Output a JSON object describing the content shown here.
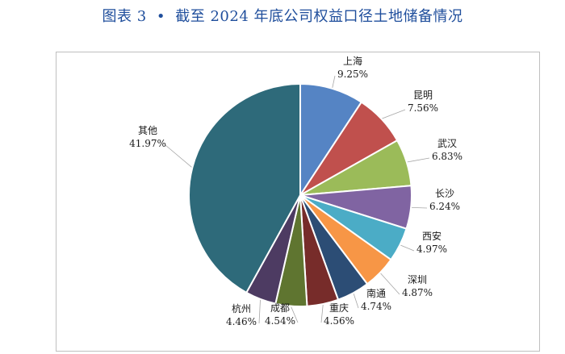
{
  "figure": {
    "number": "图表 3",
    "bullet": "•",
    "title": "截至 2024 年底公司权益口径土地储备情况"
  },
  "chart_data": {
    "type": "pie",
    "title": "截至 2024 年底公司权益口径土地储备情况",
    "legend": "none",
    "slices": [
      {
        "label": "上海",
        "value": 9.25,
        "display": "9.25%",
        "color": "#5584c4"
      },
      {
        "label": "昆明",
        "value": 7.56,
        "display": "7.56%",
        "color": "#c0504d"
      },
      {
        "label": "武汉",
        "value": 6.83,
        "display": "6.83%",
        "color": "#9bbb59"
      },
      {
        "label": "长沙",
        "value": 6.24,
        "display": "6.24%",
        "color": "#8064a2"
      },
      {
        "label": "西安",
        "value": 4.97,
        "display": "4.97%",
        "color": "#4bacc6"
      },
      {
        "label": "深圳",
        "value": 4.87,
        "display": "4.87%",
        "color": "#f79646"
      },
      {
        "label": "南通",
        "value": 4.74,
        "display": "4.74%",
        "color": "#2c4d75"
      },
      {
        "label": "重庆",
        "value": 4.56,
        "display": "4.56%",
        "color": "#772c2a"
      },
      {
        "label": "成都",
        "value": 4.54,
        "display": "4.54%",
        "color": "#5f7530"
      },
      {
        "label": "杭州",
        "value": 4.46,
        "display": "4.46%",
        "color": "#4d3b62"
      },
      {
        "label": "其他",
        "value": 41.97,
        "display": "41.97%",
        "color": "#2e6a7a"
      }
    ]
  }
}
